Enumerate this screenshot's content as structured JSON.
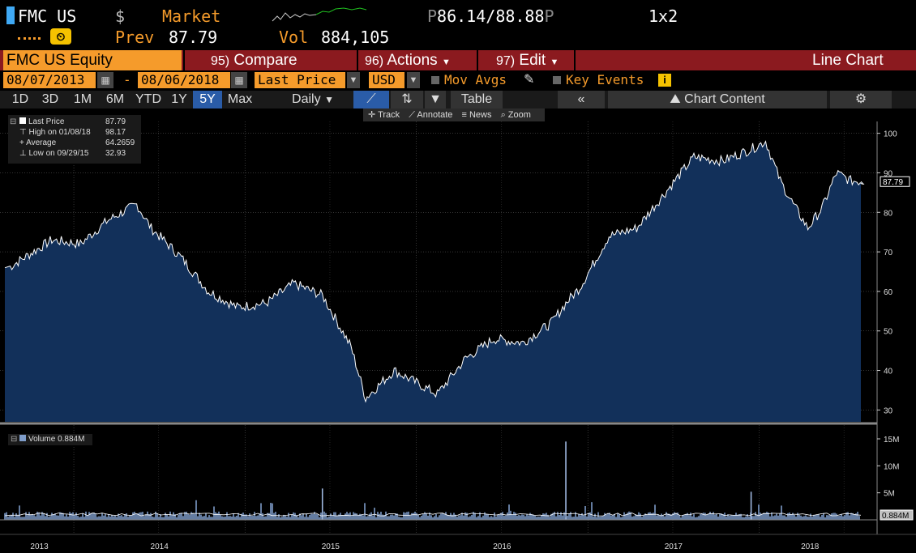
{
  "header": {
    "ticker": "FMC US",
    "currency_symbol": "$",
    "market_label": "Market",
    "bid_ask_prefix": "P",
    "bid": "86.14",
    "ask_sep": "/",
    "ask": "88.88",
    "ask_suffix": "P",
    "size": "1x2",
    "prev_label": "Prev",
    "prev_value": "87.79",
    "vol_label": "Vol",
    "vol_value": "884,105"
  },
  "menu": {
    "security": "FMC US Equity",
    "compare_num": "95)",
    "compare_label": "Compare",
    "actions_num": "96)",
    "actions_label": "Actions",
    "edit_num": "97)",
    "edit_label": "Edit",
    "view_label": "Line Chart"
  },
  "settings": {
    "start_date": "08/07/2013",
    "range_sep": "-",
    "end_date": "08/06/2018",
    "field": "Last Price",
    "currency": "USD",
    "mov_avgs": "Mov Avgs",
    "key_events": "Key Events",
    "info_icon_label": "i"
  },
  "tabs": {
    "periods": [
      "1D",
      "3D",
      "1M",
      "6M",
      "YTD",
      "1Y",
      "5Y",
      "Max"
    ],
    "selected": "5Y",
    "frequency": "Daily",
    "table_label": "Table",
    "chart_content_label": "Chart Content"
  },
  "tools": {
    "track": "Track",
    "annotate": "Annotate",
    "news": "News",
    "zoom": "Zoom"
  },
  "legend": {
    "last_price_label": "Last Price",
    "last_price_value": "87.79",
    "high_label": "High on 01/08/18",
    "high_value": "98.17",
    "average_label": "Average",
    "average_value": "64.2659",
    "low_label": "Low on 09/29/15",
    "low_value": "32.93",
    "volume_label": "Volume",
    "volume_value": "0.884M"
  },
  "colors": {
    "accent_orange": "#f59b2b",
    "menu_red": "#8b1a1f",
    "area_fill": "#12305a",
    "line": "#ffffff",
    "volume_bar": "#7e9cc9",
    "selected_tab": "#2a5ca8"
  },
  "chart_data": [
    {
      "type": "area",
      "series": [
        {
          "name": "Last Price"
        }
      ],
      "x_labels": [
        "2013",
        "2014",
        "2015",
        "2016",
        "2017",
        "2018"
      ],
      "x": [
        "2013-08",
        "2013-11",
        "2014-01",
        "2014-03",
        "2014-05",
        "2014-06",
        "2014-08",
        "2014-10",
        "2014-12",
        "2015-02",
        "2015-04",
        "2015-06",
        "2015-08",
        "2015-09",
        "2015-11",
        "2016-01",
        "2016-02",
        "2016-04",
        "2016-06",
        "2016-08",
        "2016-10",
        "2016-11",
        "2016-12",
        "2017-02",
        "2017-04",
        "2017-06",
        "2017-08",
        "2017-10",
        "2017-12",
        "2018-01",
        "2018-02",
        "2018-03",
        "2018-04",
        "2018-05",
        "2018-06",
        "2018-07",
        "2018-08"
      ],
      "y": [
        66,
        73,
        72,
        78,
        82,
        76,
        69,
        60,
        56,
        57,
        62,
        59,
        46,
        33,
        40,
        36,
        34,
        43,
        48,
        47,
        52,
        57,
        61,
        74,
        76,
        85,
        94,
        93,
        96,
        98,
        88,
        82,
        76,
        81,
        90,
        88,
        87.79
      ],
      "ylim": [
        27,
        103
      ],
      "y_ticks": [
        "100",
        "90",
        "80",
        "70",
        "60",
        "50",
        "40",
        "30"
      ],
      "last_value_tag": "87.79",
      "grid": true
    },
    {
      "type": "bar",
      "series": [
        {
          "name": "Volume"
        }
      ],
      "y_ticks": [
        "15M",
        "10M",
        "5M"
      ],
      "last_value_tag": "0.884M",
      "spikes": [
        {
          "x": "2015-06",
          "value": 5.8
        },
        {
          "x": "2016-11",
          "value": 14.5
        },
        {
          "x": "2017-12",
          "value": 5.2
        }
      ],
      "typical_value": 0.9
    }
  ]
}
